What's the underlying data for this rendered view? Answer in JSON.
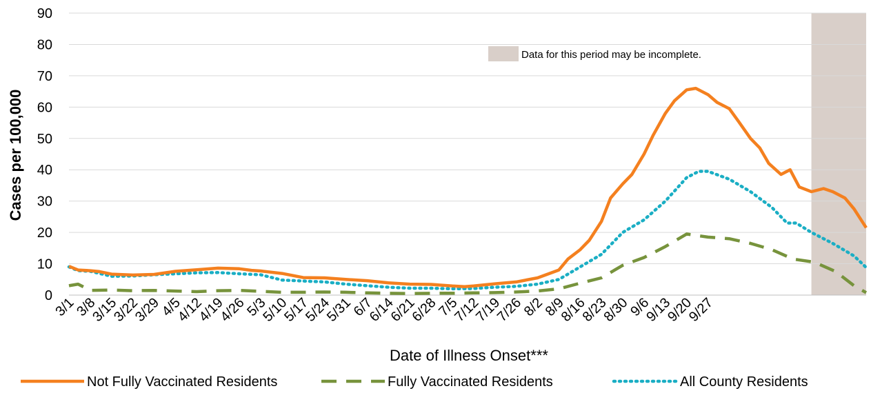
{
  "chart_data": {
    "type": "line",
    "title": "",
    "xlabel": "Date of Illness Onset***",
    "ylabel": "Cases per 100,000",
    "ylim": [
      0,
      90
    ],
    "yticks": [
      0,
      10,
      20,
      30,
      40,
      50,
      60,
      70,
      80,
      90
    ],
    "x_range_days": [
      0,
      217
    ],
    "x_tick_labels": [
      "3/1",
      "3/8",
      "3/15",
      "3/22",
      "3/29",
      "4/5",
      "4/12",
      "4/19",
      "4/26",
      "5/3",
      "5/10",
      "5/17",
      "5/24",
      "5/31",
      "6/7",
      "6/14",
      "6/21",
      "6/28",
      "7/5",
      "7/12",
      "7/19",
      "7/26",
      "8/2",
      "8/9",
      "8/16",
      "8/23",
      "8/30",
      "9/6",
      "9/13",
      "9/20",
      "9/27"
    ],
    "grid": "horizontal",
    "legend_position": "bottom",
    "shaded_region": {
      "start_day": 204,
      "end_day": 217,
      "color": "#d9cfc9",
      "label": "Data for this period may be incomplete."
    },
    "series": [
      {
        "name": "Not Fully Vaccinated Residents",
        "color": "#f4801f",
        "style": "solid",
        "points": [
          [
            0,
            9.2
          ],
          [
            3,
            8.0
          ],
          [
            7,
            7.8
          ],
          [
            10,
            7.5
          ],
          [
            14,
            6.7
          ],
          [
            21,
            6.4
          ],
          [
            28,
            6.6
          ],
          [
            35,
            7.6
          ],
          [
            42,
            8.1
          ],
          [
            49,
            8.6
          ],
          [
            56,
            8.4
          ],
          [
            60,
            7.9
          ],
          [
            63,
            7.7
          ],
          [
            70,
            6.9
          ],
          [
            77,
            5.6
          ],
          [
            84,
            5.5
          ],
          [
            91,
            5.0
          ],
          [
            98,
            4.6
          ],
          [
            105,
            3.9
          ],
          [
            112,
            3.5
          ],
          [
            119,
            3.4
          ],
          [
            126,
            2.9
          ],
          [
            130,
            2.7
          ],
          [
            133,
            2.9
          ],
          [
            140,
            3.6
          ],
          [
            147,
            4.2
          ],
          [
            154,
            5.5
          ],
          [
            161,
            8.0
          ],
          [
            164,
            11.5
          ],
          [
            168,
            14.5
          ],
          [
            171,
            17.5
          ],
          [
            175,
            23.5
          ],
          [
            178,
            31.0
          ],
          [
            182,
            35.5
          ],
          [
            185,
            38.5
          ],
          [
            189,
            45.0
          ],
          [
            192,
            51.0
          ],
          [
            196,
            58.0
          ],
          [
            199,
            62.0
          ],
          [
            203,
            65.5
          ],
          [
            206,
            66.0
          ],
          [
            210,
            64.0
          ],
          [
            213,
            61.5
          ],
          [
            217,
            59.5
          ],
          [
            220,
            55.5
          ],
          [
            224,
            50.0
          ],
          [
            227,
            47.0
          ],
          [
            230,
            42.0
          ],
          [
            234,
            38.5
          ],
          [
            237,
            40.0
          ],
          [
            240,
            34.5
          ],
          [
            244,
            33.0
          ],
          [
            248,
            34.0
          ],
          [
            251,
            33.0
          ],
          [
            255,
            31.0
          ],
          [
            258,
            27.5
          ],
          [
            262,
            21.5
          ]
        ]
      },
      {
        "name": "Fully Vaccinated Residents",
        "color": "#77933c",
        "style": "dashed",
        "points": [
          [
            0,
            3.0
          ],
          [
            3,
            3.5
          ],
          [
            7,
            1.5
          ],
          [
            14,
            1.6
          ],
          [
            21,
            1.4
          ],
          [
            28,
            1.5
          ],
          [
            35,
            1.3
          ],
          [
            42,
            1.1
          ],
          [
            49,
            1.4
          ],
          [
            56,
            1.5
          ],
          [
            63,
            1.2
          ],
          [
            70,
            0.9
          ],
          [
            77,
            0.9
          ],
          [
            84,
            1.0
          ],
          [
            91,
            0.9
          ],
          [
            98,
            0.7
          ],
          [
            105,
            0.6
          ],
          [
            112,
            0.5
          ],
          [
            119,
            0.6
          ],
          [
            126,
            0.6
          ],
          [
            133,
            0.7
          ],
          [
            140,
            0.8
          ],
          [
            147,
            1.0
          ],
          [
            154,
            1.3
          ],
          [
            161,
            2.0
          ],
          [
            168,
            3.8
          ],
          [
            175,
            5.5
          ],
          [
            182,
            9.5
          ],
          [
            189,
            12.0
          ],
          [
            196,
            15.5
          ],
          [
            203,
            19.5
          ],
          [
            210,
            18.5
          ],
          [
            217,
            18.0
          ],
          [
            224,
            16.5
          ],
          [
            231,
            14.5
          ],
          [
            238,
            11.5
          ],
          [
            245,
            10.5
          ],
          [
            252,
            7.5
          ],
          [
            258,
            3.0
          ],
          [
            262,
            0.8
          ]
        ]
      },
      {
        "name": "All County Residents",
        "color": "#1aaec4",
        "style": "dotted",
        "points": [
          [
            0,
            9.0
          ],
          [
            3,
            7.8
          ],
          [
            7,
            7.6
          ],
          [
            14,
            6.0
          ],
          [
            21,
            6.1
          ],
          [
            28,
            6.5
          ],
          [
            35,
            6.8
          ],
          [
            42,
            7.1
          ],
          [
            49,
            7.2
          ],
          [
            56,
            6.8
          ],
          [
            63,
            6.5
          ],
          [
            70,
            4.8
          ],
          [
            77,
            4.5
          ],
          [
            84,
            4.2
          ],
          [
            91,
            3.5
          ],
          [
            98,
            3.0
          ],
          [
            105,
            2.5
          ],
          [
            112,
            2.2
          ],
          [
            119,
            2.2
          ],
          [
            126,
            2.0
          ],
          [
            133,
            2.1
          ],
          [
            140,
            2.5
          ],
          [
            147,
            2.8
          ],
          [
            154,
            3.5
          ],
          [
            161,
            5.0
          ],
          [
            168,
            9.0
          ],
          [
            175,
            13.0
          ],
          [
            182,
            20.0
          ],
          [
            189,
            24.0
          ],
          [
            196,
            30.0
          ],
          [
            203,
            37.5
          ],
          [
            207,
            39.5
          ],
          [
            210,
            39.5
          ],
          [
            217,
            37.0
          ],
          [
            224,
            33.0
          ],
          [
            231,
            28.0
          ],
          [
            236,
            23.0
          ],
          [
            239,
            23.0
          ],
          [
            244,
            20.0
          ],
          [
            251,
            16.5
          ],
          [
            258,
            12.5
          ],
          [
            262,
            8.8
          ]
        ]
      }
    ]
  }
}
